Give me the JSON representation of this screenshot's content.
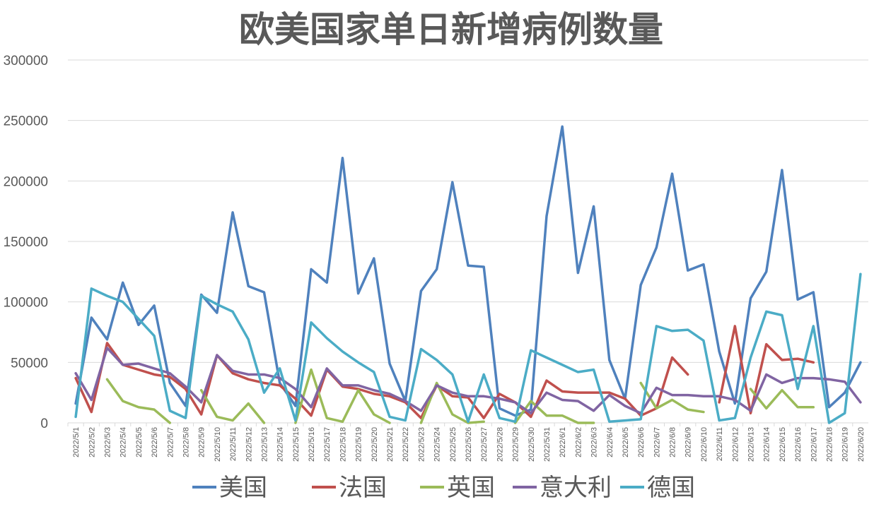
{
  "chart_data": {
    "type": "line",
    "title": "欧美国家单日新增病例数量",
    "xlabel": "",
    "ylabel": "",
    "ylim": [
      0,
      300000
    ],
    "yticks": [
      0,
      50000,
      100000,
      150000,
      200000,
      250000,
      300000
    ],
    "grid": true,
    "legend": "bottom",
    "x": [
      "2022/5/1",
      "2022/5/2",
      "2022/5/3",
      "2022/5/4",
      "2022/5/5",
      "2022/5/6",
      "2022/5/7",
      "2022/5/8",
      "2022/5/9",
      "2022/5/10",
      "2022/5/11",
      "2022/5/12",
      "2022/5/13",
      "2022/5/14",
      "2022/5/15",
      "2022/5/16",
      "2022/5/17",
      "2022/5/18",
      "2022/5/19",
      "2022/5/20",
      "2022/5/21",
      "2022/5/22",
      "2022/5/23",
      "2022/5/24",
      "2022/5/25",
      "2022/5/26",
      "2022/5/27",
      "2022/5/28",
      "2022/5/29",
      "2022/5/30",
      "2022/5/31",
      "2022/6/1",
      "2022/6/2",
      "2022/6/3",
      "2022/6/4",
      "2022/6/5",
      "2022/6/6",
      "2022/6/7",
      "2022/6/8",
      "2022/6/9",
      "2022/6/10",
      "2022/6/11",
      "2022/6/12",
      "2022/6/13",
      "2022/6/14",
      "2022/6/15",
      "2022/6/16",
      "2022/6/17",
      "2022/6/18",
      "2022/6/19",
      "2022/6/20"
    ],
    "series": [
      {
        "name": "美国",
        "color": "#4f81bd",
        "values": [
          16000,
          87000,
          69000,
          116000,
          81000,
          97000,
          33000,
          14000,
          106000,
          91000,
          174000,
          113000,
          108000,
          33000,
          14000,
          127000,
          116000,
          219000,
          107000,
          136000,
          49000,
          18000,
          109000,
          127000,
          199000,
          130000,
          129000,
          12000,
          6000,
          11000,
          171000,
          245000,
          124000,
          179000,
          52000,
          20000,
          114000,
          145000,
          206000,
          126000,
          131000,
          59000,
          16000,
          103000,
          125000,
          209000,
          102000,
          108000,
          13000,
          25000,
          50000
        ]
      },
      {
        "name": "法国",
        "color": "#c0504d",
        "values": [
          37000,
          9000,
          66000,
          48000,
          44000,
          40000,
          38000,
          28000,
          7000,
          56000,
          41000,
          36000,
          33000,
          31000,
          20000,
          6000,
          44000,
          30000,
          28000,
          24000,
          22000,
          17000,
          4000,
          31000,
          22000,
          21000,
          4000,
          24000,
          17000,
          5000,
          35000,
          26000,
          25000,
          25000,
          25000,
          20000,
          6000,
          12000,
          54000,
          40000,
          null,
          17000,
          80000,
          8000,
          65000,
          52000,
          53000,
          50000,
          null,
          null,
          null
        ]
      },
      {
        "name": "英国",
        "color": "#9bbb59",
        "values": [
          null,
          null,
          36000,
          18000,
          13000,
          11000,
          0,
          null,
          27000,
          5000,
          2000,
          16000,
          0,
          null,
          0,
          44000,
          4000,
          1000,
          27000,
          7000,
          0,
          null,
          0,
          33000,
          7000,
          0,
          1000,
          null,
          0,
          18000,
          6000,
          6000,
          0,
          0,
          null,
          null,
          33000,
          12000,
          19000,
          11000,
          9000,
          null,
          null,
          28000,
          12000,
          27000,
          13000,
          13000,
          null,
          null,
          null
        ]
      },
      {
        "name": "意大利",
        "color": "#8064a2",
        "values": [
          41000,
          19000,
          62000,
          48000,
          49000,
          45000,
          41000,
          30000,
          17000,
          56000,
          43000,
          40000,
          40000,
          37000,
          28000,
          13000,
          45000,
          31000,
          31000,
          27000,
          24000,
          18000,
          10000,
          31000,
          25000,
          22000,
          22000,
          20000,
          17000,
          8000,
          25000,
          19000,
          18000,
          10000,
          23000,
          14000,
          8000,
          29000,
          23000,
          23000,
          22000,
          22000,
          19000,
          10000,
          40000,
          33000,
          37000,
          37000,
          36000,
          34000,
          17000
        ]
      },
      {
        "name": "德国",
        "color": "#4bacc6",
        "values": [
          5000,
          111000,
          105000,
          100000,
          86000,
          72000,
          10000,
          4000,
          105000,
          98000,
          92000,
          69000,
          25000,
          45000,
          2000,
          83000,
          70000,
          59000,
          50000,
          42000,
          5000,
          2000,
          61000,
          52000,
          40000,
          1000,
          40000,
          4000,
          1000,
          60000,
          54000,
          48000,
          42000,
          44000,
          1000,
          2000,
          3000,
          80000,
          76000,
          77000,
          68000,
          2000,
          4000,
          54000,
          92000,
          89000,
          28000,
          80000,
          0,
          8000,
          123000
        ]
      }
    ]
  }
}
